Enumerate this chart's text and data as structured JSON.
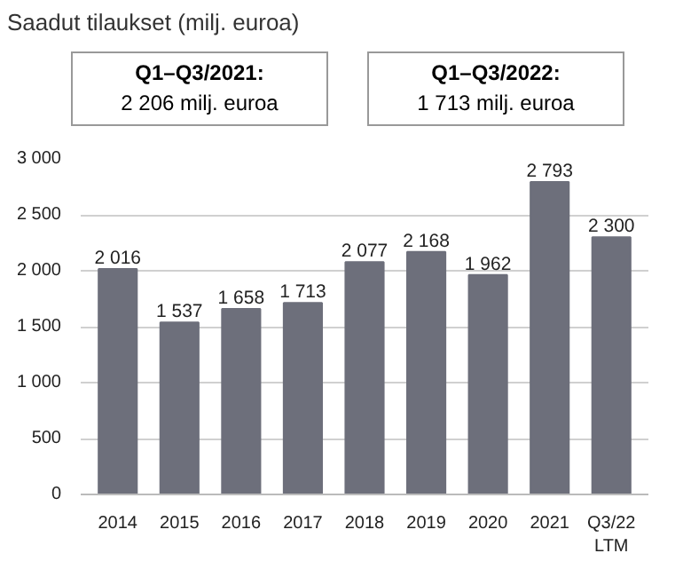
{
  "chart_data": {
    "type": "bar",
    "title": "Saadut tilaukset (milj. euroa)",
    "annotations": [
      "Q1–Q3/2021:\n2 206 milj. euroa",
      "Q1–Q3/2022:\n1 713 milj. euroa"
    ],
    "categories": [
      "2014",
      "2015",
      "2016",
      "2017",
      "2018",
      "2019",
      "2020",
      "2021",
      "Q3/22\nLTM"
    ],
    "values": [
      2016,
      1537,
      1658,
      1713,
      2077,
      2168,
      1962,
      2793,
      2300
    ],
    "value_labels": [
      "2 016",
      "1 537",
      "1 658",
      "1 713",
      "2 077",
      "2 168",
      "1 962",
      "2 793",
      "2 300"
    ],
    "color": "#6d6f7b",
    "ylim": [
      0,
      3000
    ],
    "yticks": [
      {
        "value": 0,
        "label": "0"
      },
      {
        "value": 500,
        "label": "500"
      },
      {
        "value": 1000,
        "label": "1 000"
      },
      {
        "value": 1500,
        "label": "1 500"
      },
      {
        "value": 2000,
        "label": "2 000"
      },
      {
        "value": 2500,
        "label": "2 500"
      },
      {
        "value": 3000,
        "label": "3 000"
      }
    ],
    "grid": "y"
  }
}
